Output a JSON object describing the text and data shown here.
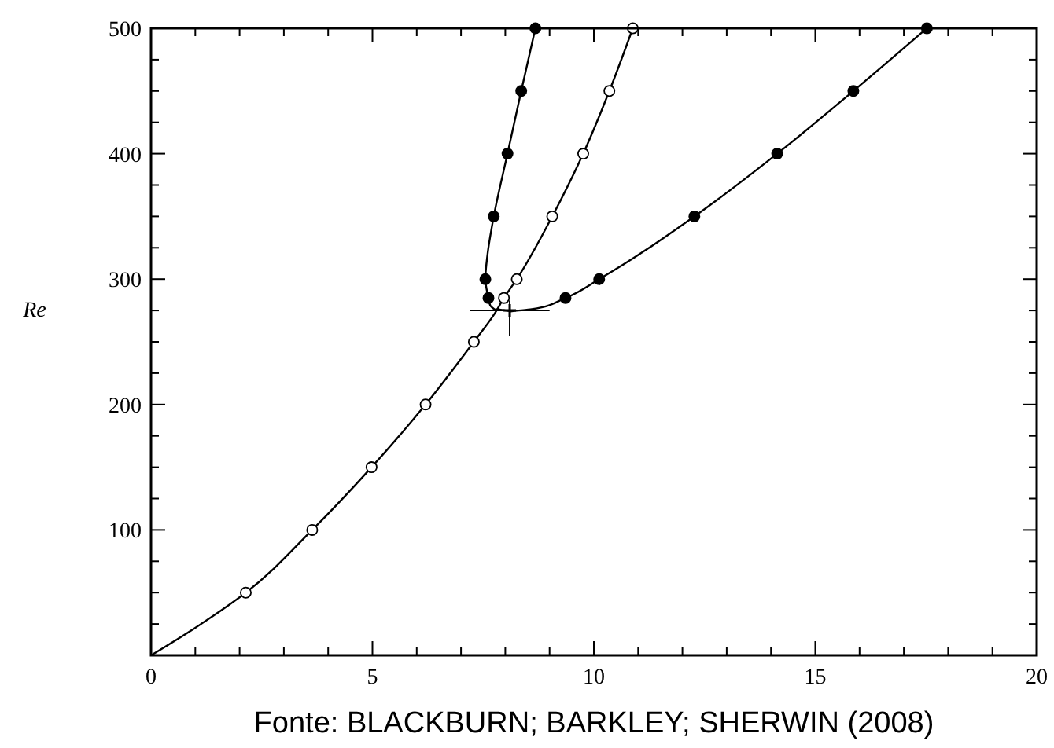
{
  "chart_data": {
    "type": "line",
    "ylabel": "Re",
    "annotations": [
      "Fonte: BLACKBURN; BARKLEY; SHERWIN (2008)"
    ],
    "xlim": [
      0,
      20
    ],
    "ylim": [
      0,
      500
    ],
    "xticks": [
      0,
      {
        "value": 1,
        "label": null
      },
      {
        "value": 2,
        "label": null
      },
      {
        "value": 3,
        "label": null
      },
      {
        "value": 4,
        "label": null
      },
      5,
      {
        "value": 6,
        "label": null
      },
      {
        "value": 7,
        "label": null
      },
      {
        "value": 8,
        "label": null
      },
      {
        "value": 9,
        "label": null
      },
      10,
      {
        "value": 11,
        "label": null
      },
      {
        "value": 12,
        "label": null
      },
      {
        "value": 13,
        "label": null
      },
      {
        "value": 14,
        "label": null
      },
      15,
      {
        "value": 16,
        "label": null
      },
      {
        "value": 17,
        "label": null
      },
      {
        "value": 18,
        "label": null
      },
      {
        "value": 19,
        "label": null
      },
      20
    ],
    "yticks": [
      {
        "value": 25,
        "label": null
      },
      {
        "value": 50,
        "label": null
      },
      {
        "value": 75,
        "label": null
      },
      100,
      {
        "value": 125,
        "label": null
      },
      {
        "value": 150,
        "label": null
      },
      {
        "value": 175,
        "label": null
      },
      200,
      {
        "value": 225,
        "label": null
      },
      {
        "value": 250,
        "label": null
      },
      {
        "value": 275,
        "label": null
      },
      300,
      {
        "value": 325,
        "label": null
      },
      {
        "value": 350,
        "label": null
      },
      {
        "value": 375,
        "label": null
      },
      400,
      {
        "value": 425,
        "label": null
      },
      {
        "value": 450,
        "label": null
      },
      {
        "value": 475,
        "label": null
      },
      500
    ],
    "grid": false,
    "series": [
      {
        "marker": "none",
        "color": "#000000",
        "x": [
          0,
          1,
          2.14,
          3.64,
          4.98,
          6.2,
          7.29,
          7.75,
          7.97,
          8.26,
          9.06,
          9.76,
          10.35,
          10.88
        ],
        "values": [
          0,
          22,
          50,
          100,
          150,
          200,
          250,
          272,
          285,
          300,
          350,
          400,
          450,
          500
        ]
      },
      {
        "marker": "none",
        "color": "#000000",
        "x": [
          7.8,
          7.66,
          7.62,
          7.55,
          7.6,
          7.74,
          8.05,
          8.36,
          8.68
        ],
        "values": [
          275,
          279,
          285,
          300,
          320,
          350,
          400,
          450,
          500
        ]
      },
      {
        "marker": "none",
        "color": "#000000",
        "x": [
          7.8,
          8.1,
          8.6,
          9.36,
          10.12,
          12.27,
          14.14,
          15.86,
          17.52
        ],
        "values": [
          276,
          274,
          276,
          285,
          300,
          350,
          400,
          450,
          500
        ]
      },
      {
        "type": "scatter",
        "marker": "circle",
        "color": "#ffffff",
        "x": [
          2.14,
          3.64,
          4.98,
          6.2,
          7.29,
          7.97,
          8.26,
          9.06,
          9.76,
          10.35,
          10.88
        ],
        "values": [
          50,
          100,
          150,
          200,
          250,
          285,
          300,
          350,
          400,
          450,
          500
        ]
      },
      {
        "type": "scatter",
        "marker": "circle",
        "color": "#000000",
        "x": [
          7.62,
          7.55,
          7.74,
          8.05,
          8.36,
          8.68,
          9.36,
          10.12,
          12.27,
          14.14,
          15.86,
          17.52
        ],
        "values": [
          285,
          300,
          350,
          400,
          450,
          500,
          285,
          300,
          350,
          400,
          450,
          500
        ]
      },
      {
        "type": "scatter",
        "marker": "cross",
        "color": "#000000",
        "x": [
          8.1
        ],
        "values": [
          275
        ],
        "errors": [
          [
            255,
            283
          ]
        ],
        "xerrors": [
          [
            7.2,
            9.0
          ]
        ]
      }
    ]
  }
}
